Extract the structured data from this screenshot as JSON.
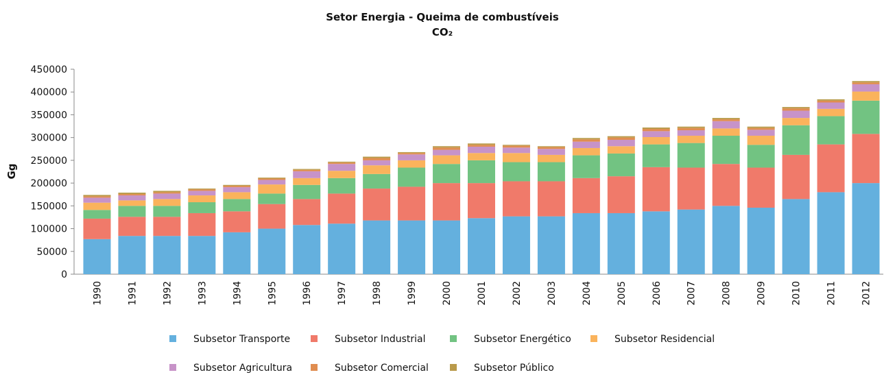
{
  "chart_data": {
    "type": "stacked_bar",
    "title": "Setor Energia - Queima de combustíveis",
    "subtitle": "CO₂",
    "y_label": "Gg",
    "categories": [
      "1990",
      "1991",
      "1992",
      "1993",
      "1994",
      "1995",
      "1996",
      "1997",
      "1998",
      "1999",
      "2000",
      "2001",
      "2002",
      "2003",
      "2004",
      "2005",
      "2006",
      "2007",
      "2008",
      "2009",
      "2010",
      "2011",
      "2012"
    ],
    "series": [
      {
        "name": "Subsetor Transporte",
        "color": "#64b0de",
        "values": [
          77000,
          84000,
          84000,
          84000,
          92000,
          100000,
          108000,
          111000,
          118000,
          118000,
          118000,
          123000,
          127000,
          127000,
          134000,
          134000,
          138000,
          142000,
          150000,
          146000,
          165000,
          180000,
          200000
        ]
      },
      {
        "name": "Subsetor Industrial",
        "color": "#f07a6a",
        "values": [
          45000,
          42000,
          42000,
          50000,
          46000,
          54000,
          57000,
          66000,
          70000,
          74000,
          82000,
          77000,
          77000,
          77000,
          77000,
          81000,
          97000,
          92000,
          92000,
          88000,
          97000,
          105000,
          108000
        ]
      },
      {
        "name": "Subsetor Energético",
        "color": "#72c382",
        "values": [
          19000,
          24000,
          24000,
          24000,
          27000,
          23000,
          31000,
          34000,
          32000,
          42000,
          42000,
          50000,
          42000,
          42000,
          50000,
          50000,
          50000,
          54000,
          62000,
          50000,
          65000,
          62000,
          73000
        ]
      },
      {
        "name": "Subsetor Residencial",
        "color": "#fab35c",
        "values": [
          16000,
          12000,
          15000,
          15000,
          15000,
          20000,
          15000,
          16000,
          19000,
          16000,
          19000,
          16000,
          20000,
          16000,
          16000,
          16000,
          16000,
          16000,
          16000,
          20000,
          16000,
          16000,
          20000
        ]
      },
      {
        "name": "Subsetor Agricultura",
        "color": "#c793c8",
        "values": [
          11000,
          11000,
          12000,
          10000,
          11000,
          10000,
          15000,
          15000,
          11000,
          13000,
          12000,
          14000,
          12000,
          13000,
          14000,
          14000,
          13000,
          12000,
          16000,
          13000,
          16000,
          14000,
          16000
        ]
      },
      {
        "name": "Subsetor Comercial",
        "color": "#e08d50",
        "values": [
          3000,
          3000,
          3000,
          3000,
          3000,
          3000,
          3000,
          3000,
          5000,
          3000,
          5000,
          4000,
          4000,
          4000,
          5000,
          5000,
          5000,
          5000,
          4000,
          4000,
          5000,
          4000,
          4000
        ]
      },
      {
        "name": "Subsetor Público",
        "color": "#b99a4a",
        "values": [
          3000,
          3000,
          3000,
          2000,
          2000,
          2000,
          2000,
          2000,
          3000,
          2000,
          3000,
          3000,
          2000,
          2000,
          3000,
          3000,
          3000,
          3000,
          3000,
          3000,
          3000,
          3000,
          3000
        ]
      }
    ],
    "ylim": [
      0,
      450000
    ],
    "yticks": [
      0,
      50000,
      100000,
      150000,
      200000,
      250000,
      300000,
      350000,
      400000,
      450000
    ],
    "grid": false,
    "legend": "bottom"
  }
}
